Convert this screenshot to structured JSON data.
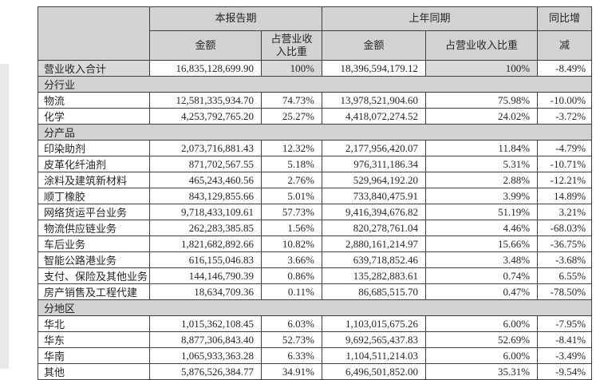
{
  "colors": {
    "cell_shade": "#d2d2d2",
    "total_shade": "#d9d9d9",
    "border": "#3f3f3f",
    "text": "#262626",
    "page_bg": "#ffffff"
  },
  "header": {
    "period_current": "本报告期",
    "period_prior": "上年同期",
    "yoy_line1": "同比增",
    "yoy_line2": "减",
    "amount_label": "金额",
    "ratio_current_line1": "占营业收",
    "ratio_current_line2": "入比重",
    "ratio_prior": "占营业收入比重"
  },
  "rows": [
    {
      "type": "total",
      "label": "营业收入合计",
      "cur_amount": "16,835,128,699.90",
      "cur_ratio": "100%",
      "prior_amount": "18,396,594,179.12",
      "prior_ratio": "100%",
      "yoy": "-8.49%"
    },
    {
      "type": "section",
      "label": "分行业"
    },
    {
      "type": "data",
      "label": "物流",
      "cur_amount": "12,581,335,934.70",
      "cur_ratio": "74.73%",
      "prior_amount": "13,978,521,904.60",
      "prior_ratio": "75.98%",
      "yoy": "-10.00%"
    },
    {
      "type": "data",
      "label": "化学",
      "cur_amount": "4,253,792,765.20",
      "cur_ratio": "25.27%",
      "prior_amount": "4,418,072,274.52",
      "prior_ratio": "24.02%",
      "yoy": "-3.72%"
    },
    {
      "type": "section",
      "label": "分产品"
    },
    {
      "type": "data",
      "label": "印染助剂",
      "cur_amount": "2,073,716,881.43",
      "cur_ratio": "12.32%",
      "prior_amount": "2,177,956,420.07",
      "prior_ratio": "11.84%",
      "yoy": "-4.79%"
    },
    {
      "type": "data",
      "label": "皮革化纤油剂",
      "cur_amount": "871,702,567.55",
      "cur_ratio": "5.18%",
      "prior_amount": "976,311,186.34",
      "prior_ratio": "5.31%",
      "yoy": "-10.71%"
    },
    {
      "type": "data",
      "label": "涂料及建筑新材料",
      "cur_amount": "465,243,460.56",
      "cur_ratio": "2.76%",
      "prior_amount": "529,964,192.20",
      "prior_ratio": "2.88%",
      "yoy": "-12.21%"
    },
    {
      "type": "data",
      "label": "顺丁橡胶",
      "cur_amount": "843,129,855.66",
      "cur_ratio": "5.01%",
      "prior_amount": "733,840,475.91",
      "prior_ratio": "3.99%",
      "yoy": "14.89%"
    },
    {
      "type": "data",
      "label": "网络货运平台业务",
      "cur_amount": "9,718,433,109.61",
      "cur_ratio": "57.73%",
      "prior_amount": "9,416,394,676.82",
      "prior_ratio": "51.19%",
      "yoy": "3.21%"
    },
    {
      "type": "data",
      "label": "物流供应链业务",
      "cur_amount": "262,283,385.85",
      "cur_ratio": "1.56%",
      "prior_amount": "820,278,761.04",
      "prior_ratio": "4.46%",
      "yoy": "-68.03%"
    },
    {
      "type": "data",
      "label": "车后业务",
      "cur_amount": "1,821,682,892.66",
      "cur_ratio": "10.82%",
      "prior_amount": "2,880,161,214.97",
      "prior_ratio": "15.66%",
      "yoy": "-36.75%"
    },
    {
      "type": "data",
      "label": "智能公路港业务",
      "cur_amount": "616,155,046.83",
      "cur_ratio": "3.66%",
      "prior_amount": "639,718,852.46",
      "prior_ratio": "3.48%",
      "yoy": "-3.68%"
    },
    {
      "type": "data",
      "label": "支付、保险及其他业务",
      "cur_amount": "144,146,790.39",
      "cur_ratio": "0.86%",
      "prior_amount": "135,282,883.61",
      "prior_ratio": "0.74%",
      "yoy": "6.55%"
    },
    {
      "type": "data",
      "label": "房产销售及工程代建",
      "cur_amount": "18,634,709.36",
      "cur_ratio": "0.11%",
      "prior_amount": "86,685,515.70",
      "prior_ratio": "0.47%",
      "yoy": "-78.50%"
    },
    {
      "type": "section",
      "label": "分地区"
    },
    {
      "type": "data",
      "label": "华北",
      "cur_amount": "1,015,362,108.45",
      "cur_ratio": "6.03%",
      "prior_amount": "1,103,015,675.26",
      "prior_ratio": "6.00%",
      "yoy": "-7.95%"
    },
    {
      "type": "data",
      "label": "华东",
      "cur_amount": "8,877,306,843.40",
      "cur_ratio": "52.73%",
      "prior_amount": "9,692,565,437.83",
      "prior_ratio": "52.69%",
      "yoy": "-8.41%"
    },
    {
      "type": "data",
      "label": "华南",
      "cur_amount": "1,065,933,363.28",
      "cur_ratio": "6.33%",
      "prior_amount": "1,104,511,214.03",
      "prior_ratio": "6.00%",
      "yoy": "-3.49%"
    },
    {
      "type": "data",
      "label": "其他",
      "cur_amount": "5,876,526,384.77",
      "cur_ratio": "34.91%",
      "prior_amount": "6,496,501,852.00",
      "prior_ratio": "35.31%",
      "yoy": "-9.54%"
    }
  ]
}
